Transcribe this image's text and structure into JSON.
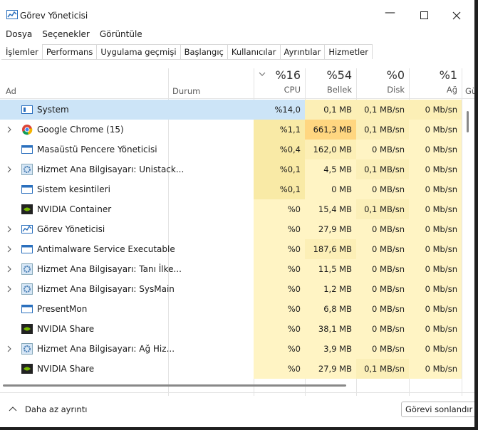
{
  "window": {
    "title": "Görev Yöneticisi"
  },
  "menu": [
    "Dosya",
    "Seçenekler",
    "Görüntüle"
  ],
  "tabs": [
    "İşlemler",
    "Performans",
    "Uygulama geçmişi",
    "Başlangıç",
    "Kullanıcılar",
    "Ayrıntılar",
    "Hizmetler"
  ],
  "header": {
    "name": "Ad",
    "status": "Durum",
    "columns": [
      {
        "total": "%16",
        "label": "CPU"
      },
      {
        "total": "%54",
        "label": "Bellek"
      },
      {
        "total": "%0",
        "label": "Disk"
      },
      {
        "total": "%1",
        "label": "Ağ"
      }
    ],
    "partial": "Gü"
  },
  "rows": [
    {
      "name": "System",
      "icon": "system",
      "expandable": false,
      "selected": true,
      "cells": [
        "%14,0",
        "0,1 MB",
        "0,1 MB/sn",
        "0 Mb/sn"
      ]
    },
    {
      "name": "Google Chrome (15)",
      "icon": "chrome",
      "expandable": true,
      "cells": [
        "%1,1",
        "661,3 MB",
        "0,1 MB/sn",
        "0 Mb/sn"
      ],
      "shades": [
        "#f9eaa6",
        "#ffd680",
        "#fbefb8",
        null
      ]
    },
    {
      "name": "Masaüstü Pencere Yöneticisi",
      "icon": "window",
      "expandable": false,
      "cells": [
        "%0,4",
        "162,0 MB",
        "0 MB/sn",
        "0 Mb/sn"
      ],
      "shades": [
        "#f9eaa6",
        "#fcefb6",
        null,
        null
      ]
    },
    {
      "name": "Hizmet Ana Bilgisayarı: Unistack...",
      "icon": "gear",
      "expandable": true,
      "cells": [
        "%0,1",
        "4,5 MB",
        "0,1 MB/sn",
        "0 Mb/sn"
      ],
      "shades": [
        "#f9eaa6",
        null,
        "#fbefb8",
        null
      ]
    },
    {
      "name": "Sistem kesintileri",
      "icon": "window",
      "expandable": false,
      "cells": [
        "%0,1",
        "0 MB",
        "0 MB/sn",
        "0 Mb/sn"
      ],
      "shades": [
        "#f9eaa6",
        null,
        null,
        null
      ]
    },
    {
      "name": "NVIDIA Container",
      "icon": "nvidia",
      "expandable": false,
      "cells": [
        "%0",
        "15,4 MB",
        "0,1 MB/sn",
        "0 Mb/sn"
      ],
      "shades": [
        null,
        null,
        "#fbefb8",
        null
      ]
    },
    {
      "name": "Görev Yöneticisi",
      "icon": "taskmgr",
      "expandable": true,
      "cells": [
        "%0",
        "27,9 MB",
        "0 MB/sn",
        "0 Mb/sn"
      ]
    },
    {
      "name": "Antimalware Service Executable",
      "icon": "window",
      "expandable": true,
      "cells": [
        "%0",
        "187,6 MB",
        "0 MB/sn",
        "0 Mb/sn"
      ],
      "shades": [
        null,
        "#fcefb6",
        null,
        null
      ]
    },
    {
      "name": "Hizmet Ana Bilgisayarı: Tanı İlke...",
      "icon": "gear",
      "expandable": true,
      "cells": [
        "%0",
        "11,5 MB",
        "0 MB/sn",
        "0 Mb/sn"
      ]
    },
    {
      "name": "Hizmet Ana Bilgisayarı: SysMain",
      "icon": "gear",
      "expandable": true,
      "cells": [
        "%0",
        "1,2 MB",
        "0 MB/sn",
        "0 Mb/sn"
      ]
    },
    {
      "name": "PresentMon",
      "icon": "window",
      "expandable": false,
      "cells": [
        "%0",
        "6,8 MB",
        "0 MB/sn",
        "0 Mb/sn"
      ]
    },
    {
      "name": "NVIDIA Share",
      "icon": "nvidia",
      "expandable": false,
      "cells": [
        "%0",
        "38,1 MB",
        "0 MB/sn",
        "0 Mb/sn"
      ]
    },
    {
      "name": "Hizmet Ana Bilgisayarı: Ağ Hiz...",
      "icon": "gear",
      "expandable": true,
      "cells": [
        "%0",
        "3,9 MB",
        "0 MB/sn",
        "0 Mb/sn"
      ]
    },
    {
      "name": "NVIDIA Share",
      "icon": "nvidia",
      "expandable": false,
      "cells": [
        "%0",
        "27,9 MB",
        "0,1 MB/sn",
        "0 Mb/sn"
      ],
      "shades": [
        null,
        null,
        "#fbefb8",
        null
      ]
    }
  ],
  "footer": {
    "less": "Daha az ayrıntı",
    "end": "Görevi sonlandır"
  }
}
